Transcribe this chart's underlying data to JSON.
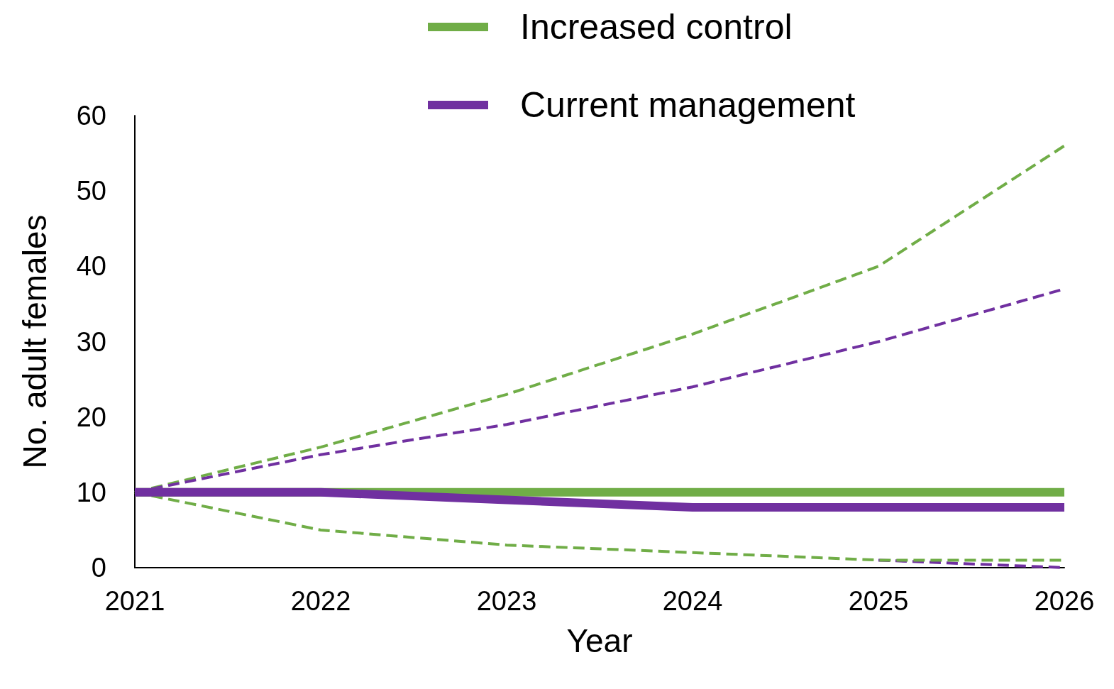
{
  "chart_data": {
    "type": "line",
    "xlabel": "Year",
    "ylabel": "No. adult females",
    "x": [
      2021,
      2022,
      2023,
      2024,
      2025,
      2026
    ],
    "series": [
      {
        "name": "Increased control",
        "color": "#70ad47",
        "line_style": "solid",
        "values": [
          10,
          10,
          10,
          10,
          10,
          10
        ]
      },
      {
        "name": "Current management",
        "color": "#7030a0",
        "line_style": "solid",
        "values": [
          10,
          10,
          9,
          8,
          8,
          8
        ]
      },
      {
        "color": "#70ad47",
        "line_style": "dashed",
        "values": [
          10,
          16,
          23,
          31,
          40,
          56
        ]
      },
      {
        "color": "#7030a0",
        "line_style": "dashed",
        "values": [
          10,
          15,
          19,
          24,
          30,
          37
        ]
      },
      {
        "color": "#7030a0",
        "line_style": "dashed",
        "values": [
          null,
          null,
          null,
          null,
          1,
          0
        ]
      },
      {
        "color": "#70ad47",
        "line_style": "dashed",
        "values": [
          10,
          5,
          3,
          2,
          1,
          1
        ]
      }
    ],
    "xlim": [
      2021,
      2026
    ],
    "xticks": [
      2021,
      2022,
      2023,
      2024,
      2025,
      2026
    ],
    "ylim": [
      0,
      60
    ],
    "yticks": [
      0,
      10,
      20,
      30,
      40,
      50,
      60
    ],
    "grid": false,
    "legend": "top right",
    "marker": "none"
  }
}
